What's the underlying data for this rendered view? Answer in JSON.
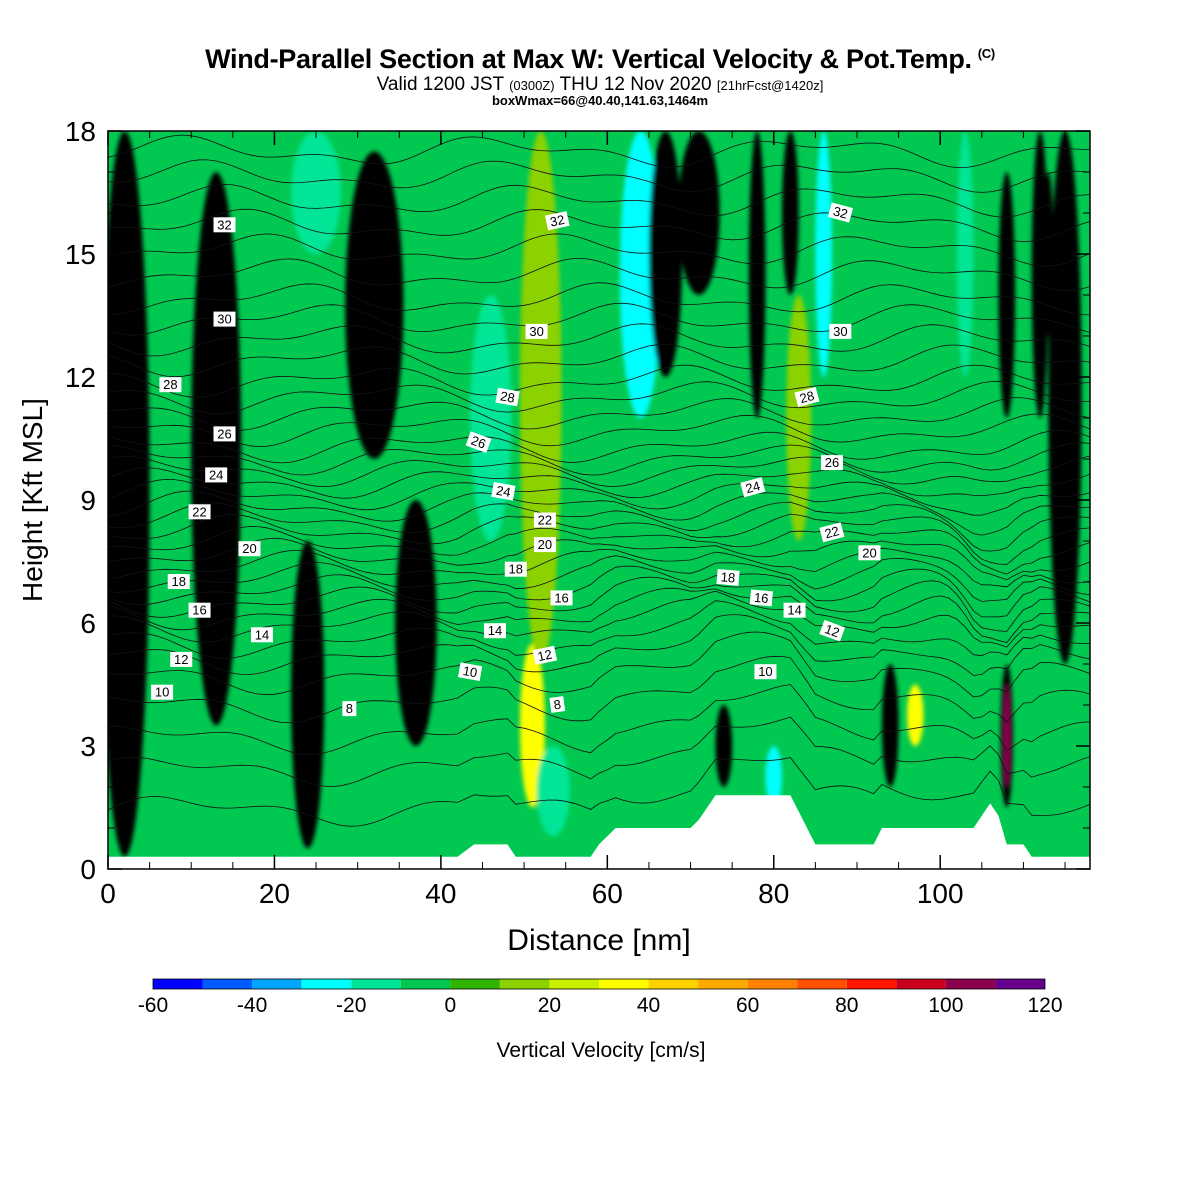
{
  "header": {
    "title": "Wind-Parallel Section at Max W: Vertical Velocity & Pot.Temp.",
    "title_mark": "(C)",
    "valid_prefix": "Valid 1200 JST",
    "valid_zulu": "(0300Z)",
    "valid_date": "THU 12 Nov 2020",
    "forecast": "[21hrFcst@1420z]",
    "box_info": "boxWmax=66@40.40,141.63,1464m"
  },
  "chart_data": {
    "type": "heatmap",
    "xlabel": "Distance [nm]",
    "ylabel": "Height [Kft MSL]",
    "xlim": [
      0,
      118
    ],
    "ylim": [
      0,
      18
    ],
    "x_ticks": [
      "0",
      "20",
      "40",
      "60",
      "80",
      "100"
    ],
    "y_ticks": [
      "0",
      "3",
      "6",
      "9",
      "12",
      "15",
      "18"
    ],
    "colorbar": {
      "label": "Vertical Velocity [cm/s]",
      "levels": [
        -60,
        -50,
        -40,
        -30,
        -20,
        -10,
        0,
        10,
        20,
        30,
        40,
        50,
        60,
        70,
        80,
        90,
        100,
        110,
        120
      ],
      "tick_labels": [
        "-60",
        "-40",
        "-20",
        "0",
        "20",
        "40",
        "60",
        "80",
        "100",
        "120"
      ],
      "colors": [
        "#0000ff",
        "#005bff",
        "#00a5ff",
        "#00ffff",
        "#00e696",
        "#00c850",
        "#32b400",
        "#8cd200",
        "#c8f000",
        "#ffff00",
        "#ffd200",
        "#ffaa00",
        "#ff8200",
        "#ff5000",
        "#ff1400",
        "#c8001e",
        "#8c0050",
        "#64008c"
      ]
    },
    "vv_field": {
      "background": 5,
      "features": [
        {
          "x": 2,
          "w": 6,
          "y0": 0.3,
          "y1": 18,
          "v": 5.5
        },
        {
          "x": 13,
          "w": 6,
          "y0": 3.5,
          "y1": 17,
          "v": 5.5
        },
        {
          "x": 24,
          "w": 4,
          "y0": 0.5,
          "y1": 8,
          "v": 4.5
        },
        {
          "x": 32,
          "w": 7,
          "y0": 10,
          "y1": 17.5,
          "v": 4.5
        },
        {
          "x": 25,
          "w": 6,
          "y0": 15,
          "y1": 18,
          "v": 4
        },
        {
          "x": 37,
          "w": 5,
          "y0": 3,
          "y1": 9,
          "v": 5.5
        },
        {
          "x": 46,
          "w": 5,
          "y0": 8,
          "y1": 14,
          "v": 4
        },
        {
          "x": 51,
          "w": 3,
          "y0": 1.5,
          "y1": 5.5,
          "v": 9
        },
        {
          "x": 52,
          "w": 5,
          "y0": 5,
          "y1": 18,
          "v": 7
        },
        {
          "x": 53.5,
          "w": 4,
          "y0": 0.8,
          "y1": 3,
          "v": 4
        },
        {
          "x": 64,
          "w": 5,
          "y0": 11,
          "y1": 18,
          "v": 3
        },
        {
          "x": 67,
          "w": 4,
          "y0": 12,
          "y1": 18,
          "v": 2.5
        },
        {
          "x": 71,
          "w": 5,
          "y0": 14,
          "y1": 18,
          "v": 7.5
        },
        {
          "x": 74,
          "w": 2,
          "y0": 2,
          "y1": 4,
          "v": 8.5
        },
        {
          "x": 78,
          "w": 2,
          "y0": 11,
          "y1": 18,
          "v": 2.5
        },
        {
          "x": 82,
          "w": 2,
          "y0": 14,
          "y1": 18,
          "v": 9.5
        },
        {
          "x": 83,
          "w": 3,
          "y0": 8,
          "y1": 14,
          "v": 7
        },
        {
          "x": 86,
          "w": 2,
          "y0": 12,
          "y1": 18,
          "v": 3
        },
        {
          "x": 80,
          "w": 2,
          "y0": 1.5,
          "y1": 3,
          "v": 3
        },
        {
          "x": 94,
          "w": 2,
          "y0": 2,
          "y1": 5,
          "v": 7.5
        },
        {
          "x": 97,
          "w": 2,
          "y0": 3,
          "y1": 4.5,
          "v": 9
        },
        {
          "x": 103,
          "w": 2,
          "y0": 12,
          "y1": 18,
          "v": 4
        },
        {
          "x": 108,
          "w": 2,
          "y0": 11,
          "y1": 17,
          "v": 8.5
        },
        {
          "x": 108,
          "w": 1.5,
          "y0": 1.5,
          "y1": 5,
          "v": 12.5
        },
        {
          "x": 108,
          "w": 0.8,
          "y0": 2,
          "y1": 4.5,
          "v": 16
        },
        {
          "x": 112,
          "w": 2,
          "y0": 11,
          "y1": 18,
          "v": 2.5
        },
        {
          "x": 113,
          "w": 1.2,
          "y0": 13,
          "y1": 17,
          "v": 1.5
        },
        {
          "x": 115,
          "w": 4,
          "y0": 5,
          "y1": 18,
          "v": 6.5
        }
      ]
    },
    "terrain_nm_kft": [
      [
        0,
        0.3
      ],
      [
        42,
        0.3
      ],
      [
        44,
        0.6
      ],
      [
        48,
        0.6
      ],
      [
        49,
        0.3
      ],
      [
        58,
        0.3
      ],
      [
        59,
        0.6
      ],
      [
        61,
        1.0
      ],
      [
        70,
        1.0
      ],
      [
        71,
        1.2
      ],
      [
        72,
        1.5
      ],
      [
        73,
        1.8
      ],
      [
        82,
        1.8
      ],
      [
        83,
        1.4
      ],
      [
        84,
        1.0
      ],
      [
        85,
        0.6
      ],
      [
        92,
        0.6
      ],
      [
        93,
        1.0
      ],
      [
        104,
        1.0
      ],
      [
        105,
        1.3
      ],
      [
        106,
        1.6
      ],
      [
        107,
        1.3
      ],
      [
        108,
        0.6
      ],
      [
        110,
        0.6
      ],
      [
        111,
        0.3
      ],
      [
        118,
        0.3
      ]
    ],
    "theta_contours": {
      "levels_above_surface": [
        1.2,
        2.2,
        3.0,
        3.8,
        4.5,
        5.0,
        5.4,
        5.8,
        6.1,
        6.4,
        6.7,
        7.0,
        7.3,
        7.6,
        7.9,
        8.2,
        8.5,
        8.8,
        9.1,
        9.4,
        9.7,
        10.0,
        10.3,
        10.7,
        11.1,
        11.5,
        11.9,
        12.4,
        12.9,
        13.4,
        13.9,
        14.5,
        15.1,
        15.7,
        16.3,
        16.9,
        17.5
      ]
    },
    "contour_labels": [
      {
        "text": "32",
        "x": 14,
        "y": 15.7,
        "r": 0
      },
      {
        "text": "32",
        "x": 54,
        "y": 15.8,
        "r": -12
      },
      {
        "text": "32",
        "x": 88,
        "y": 16.0,
        "r": 15
      },
      {
        "text": "30",
        "x": 14,
        "y": 13.4,
        "r": 0
      },
      {
        "text": "30",
        "x": 51.5,
        "y": 13.1,
        "r": 0
      },
      {
        "text": "30",
        "x": 88,
        "y": 13.1,
        "r": 0
      },
      {
        "text": "28",
        "x": 7.5,
        "y": 11.8,
        "r": 0
      },
      {
        "text": "28",
        "x": 48,
        "y": 11.5,
        "r": 10
      },
      {
        "text": "28",
        "x": 84,
        "y": 11.5,
        "r": -15
      },
      {
        "text": "26",
        "x": 14,
        "y": 10.6,
        "r": 0
      },
      {
        "text": "26",
        "x": 44.5,
        "y": 10.4,
        "r": 20
      },
      {
        "text": "26",
        "x": 87,
        "y": 9.9,
        "r": 0
      },
      {
        "text": "24",
        "x": 13,
        "y": 9.6,
        "r": 0
      },
      {
        "text": "24",
        "x": 47.5,
        "y": 9.2,
        "r": 10
      },
      {
        "text": "24",
        "x": 77.5,
        "y": 9.3,
        "r": -15
      },
      {
        "text": "22",
        "x": 11,
        "y": 8.7,
        "r": 0
      },
      {
        "text": "22",
        "x": 52.5,
        "y": 8.5,
        "r": 0
      },
      {
        "text": "22",
        "x": 87,
        "y": 8.2,
        "r": -15
      },
      {
        "text": "20",
        "x": 17,
        "y": 7.8,
        "r": 0
      },
      {
        "text": "20",
        "x": 52.5,
        "y": 7.9,
        "r": 0
      },
      {
        "text": "20",
        "x": 91.5,
        "y": 7.7,
        "r": 0
      },
      {
        "text": "18",
        "x": 8.5,
        "y": 7.0,
        "r": 0
      },
      {
        "text": "18",
        "x": 49,
        "y": 7.3,
        "r": 0
      },
      {
        "text": "18",
        "x": 74.5,
        "y": 7.1,
        "r": 5
      },
      {
        "text": "16",
        "x": 11,
        "y": 6.3,
        "r": 0
      },
      {
        "text": "16",
        "x": 54.5,
        "y": 6.6,
        "r": 0
      },
      {
        "text": "16",
        "x": 78.5,
        "y": 6.6,
        "r": 5
      },
      {
        "text": "14",
        "x": 18.5,
        "y": 5.7,
        "r": 0
      },
      {
        "text": "14",
        "x": 46.5,
        "y": 5.8,
        "r": 0
      },
      {
        "text": "14",
        "x": 82.5,
        "y": 6.3,
        "r": 0
      },
      {
        "text": "12",
        "x": 8.8,
        "y": 5.1,
        "r": 0
      },
      {
        "text": "12",
        "x": 52.5,
        "y": 5.2,
        "r": -12
      },
      {
        "text": "12",
        "x": 87,
        "y": 5.8,
        "r": 20
      },
      {
        "text": "10",
        "x": 6.5,
        "y": 4.3,
        "r": 0
      },
      {
        "text": "10",
        "x": 43.5,
        "y": 4.8,
        "r": 10
      },
      {
        "text": "10",
        "x": 79,
        "y": 4.8,
        "r": 0
      },
      {
        "text": "8",
        "x": 29,
        "y": 3.9,
        "r": 0
      },
      {
        "text": "8",
        "x": 54,
        "y": 4.0,
        "r": -8
      }
    ]
  }
}
